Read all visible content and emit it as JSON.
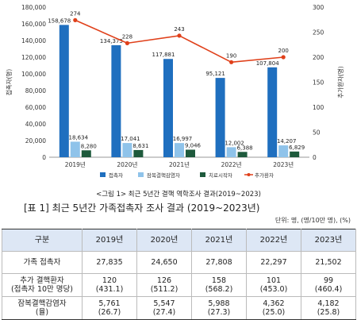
{
  "chart_data": {
    "type": "bar",
    "categories": [
      "2019년",
      "2020년",
      "2021년",
      "2022년",
      "2023년"
    ],
    "series": [
      {
        "name": "접촉자",
        "values": [
          158678,
          134373,
          117881,
          95121,
          107804
        ],
        "labels": [
          "158,678",
          "134,373",
          "117,881",
          "95,121",
          "107,804"
        ],
        "color": "#1f6fbf",
        "axis": "left",
        "kind": "bar"
      },
      {
        "name": "잠복결핵감염자",
        "values": [
          18634,
          17041,
          16997,
          12002,
          14207
        ],
        "labels": [
          "18,634",
          "17,041",
          "16,997",
          "12,002",
          "14,207"
        ],
        "color": "#8fc3ea",
        "axis": "left",
        "kind": "bar"
      },
      {
        "name": "치료시작자",
        "values": [
          8280,
          8631,
          9046,
          6388,
          6829
        ],
        "labels": [
          "8,280",
          "8,631",
          "9,046",
          "6,388",
          "6,829"
        ],
        "color": "#1e5a3c",
        "axis": "left",
        "kind": "bar"
      },
      {
        "name": "추가환자",
        "values": [
          274,
          228,
          243,
          190,
          200
        ],
        "labels": [
          "274",
          "228",
          "243",
          "190",
          "200"
        ],
        "color": "#e0401a",
        "axis": "right",
        "kind": "line"
      }
    ],
    "ylabel": "접촉자(명)",
    "y2label": "추가환자(명)",
    "ylim": [
      0,
      180000
    ],
    "y2lim": [
      0,
      300
    ],
    "yticks": [
      "0",
      "20,000",
      "40,000",
      "60,000",
      "80,000",
      "100,000",
      "120,000",
      "140,000",
      "160,000",
      "180,000"
    ],
    "y2ticks": [
      "0",
      "50",
      "100",
      "150",
      "200",
      "250",
      "300"
    ],
    "legend_position": "bottom",
    "grid": false
  },
  "figure_caption": "<그림 1> 최근 5년간 결핵 역학조사 결과(2019~2023)",
  "table_title": "[표 1] 최근 5년간 가족접촉자 조사 결과 (2019~2023년)",
  "unit_note": "단위: 명, (명/10만 명), (%)",
  "table": {
    "headers": [
      "구분",
      "2019년",
      "2020년",
      "2021년",
      "2022년",
      "2023년"
    ],
    "rows": [
      {
        "label": [
          "가족 접촉자"
        ],
        "cells": [
          [
            "27,835"
          ],
          [
            "24,650"
          ],
          [
            "27,808"
          ],
          [
            "22,297"
          ],
          [
            "21,502"
          ]
        ]
      },
      {
        "label": [
          "추가 결핵환자",
          "(접촉자 10만 명당)"
        ],
        "cells": [
          [
            "120",
            "(431.1)"
          ],
          [
            "126",
            "(511.2)"
          ],
          [
            "158",
            "(568.2)"
          ],
          [
            "101",
            "(453.0)"
          ],
          [
            "99",
            "(460.4)"
          ]
        ]
      },
      {
        "label": [
          "잠복결핵감염자",
          "(율)"
        ],
        "cells": [
          [
            "5,761",
            "(26.7)"
          ],
          [
            "5,547",
            "(27.4)"
          ],
          [
            "5,988",
            "(27.3)"
          ],
          [
            "4,362",
            "(25.0)"
          ],
          [
            "4,182",
            "(25.8)"
          ]
        ]
      }
    ]
  }
}
